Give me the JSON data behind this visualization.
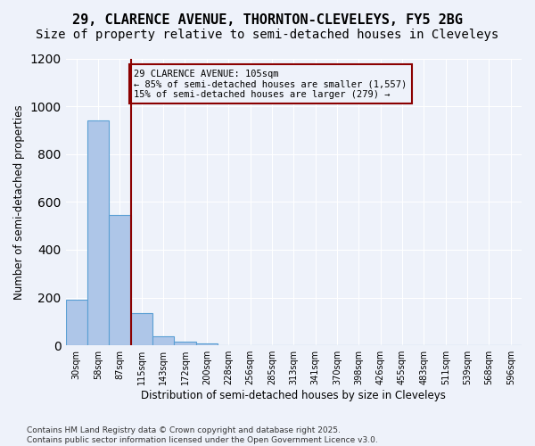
{
  "title1": "29, CLARENCE AVENUE, THORNTON-CLEVELEYS, FY5 2BG",
  "title2": "Size of property relative to semi-detached houses in Cleveleys",
  "xlabel": "Distribution of semi-detached houses by size in Cleveleys",
  "ylabel": "Number of semi-detached properties",
  "bins": [
    "30sqm",
    "58sqm",
    "87sqm",
    "115sqm",
    "143sqm",
    "172sqm",
    "200sqm",
    "228sqm",
    "256sqm",
    "285sqm",
    "313sqm",
    "341sqm",
    "370sqm",
    "398sqm",
    "426sqm",
    "455sqm",
    "483sqm",
    "511sqm",
    "539sqm",
    "568sqm",
    "596sqm"
  ],
  "values": [
    190,
    940,
    545,
    135,
    38,
    17,
    7,
    0,
    0,
    0,
    0,
    0,
    0,
    0,
    0,
    0,
    0,
    0,
    0,
    0,
    0
  ],
  "bar_color": "#aec6e8",
  "bar_edge_color": "#5a9fd4",
  "vline_color": "#8b0000",
  "annotation_text": "29 CLARENCE AVENUE: 105sqm\n← 85% of semi-detached houses are smaller (1,557)\n15% of semi-detached houses are larger (279) →",
  "annotation_box_color": "#8b0000",
  "ylim": [
    0,
    1200
  ],
  "yticks": [
    0,
    200,
    400,
    600,
    800,
    1000,
    1200
  ],
  "footer": "Contains HM Land Registry data © Crown copyright and database right 2025.\nContains public sector information licensed under the Open Government Licence v3.0.",
  "bg_color": "#eef2fa",
  "grid_color": "#ffffff",
  "title_fontsize": 11,
  "subtitle_fontsize": 10
}
